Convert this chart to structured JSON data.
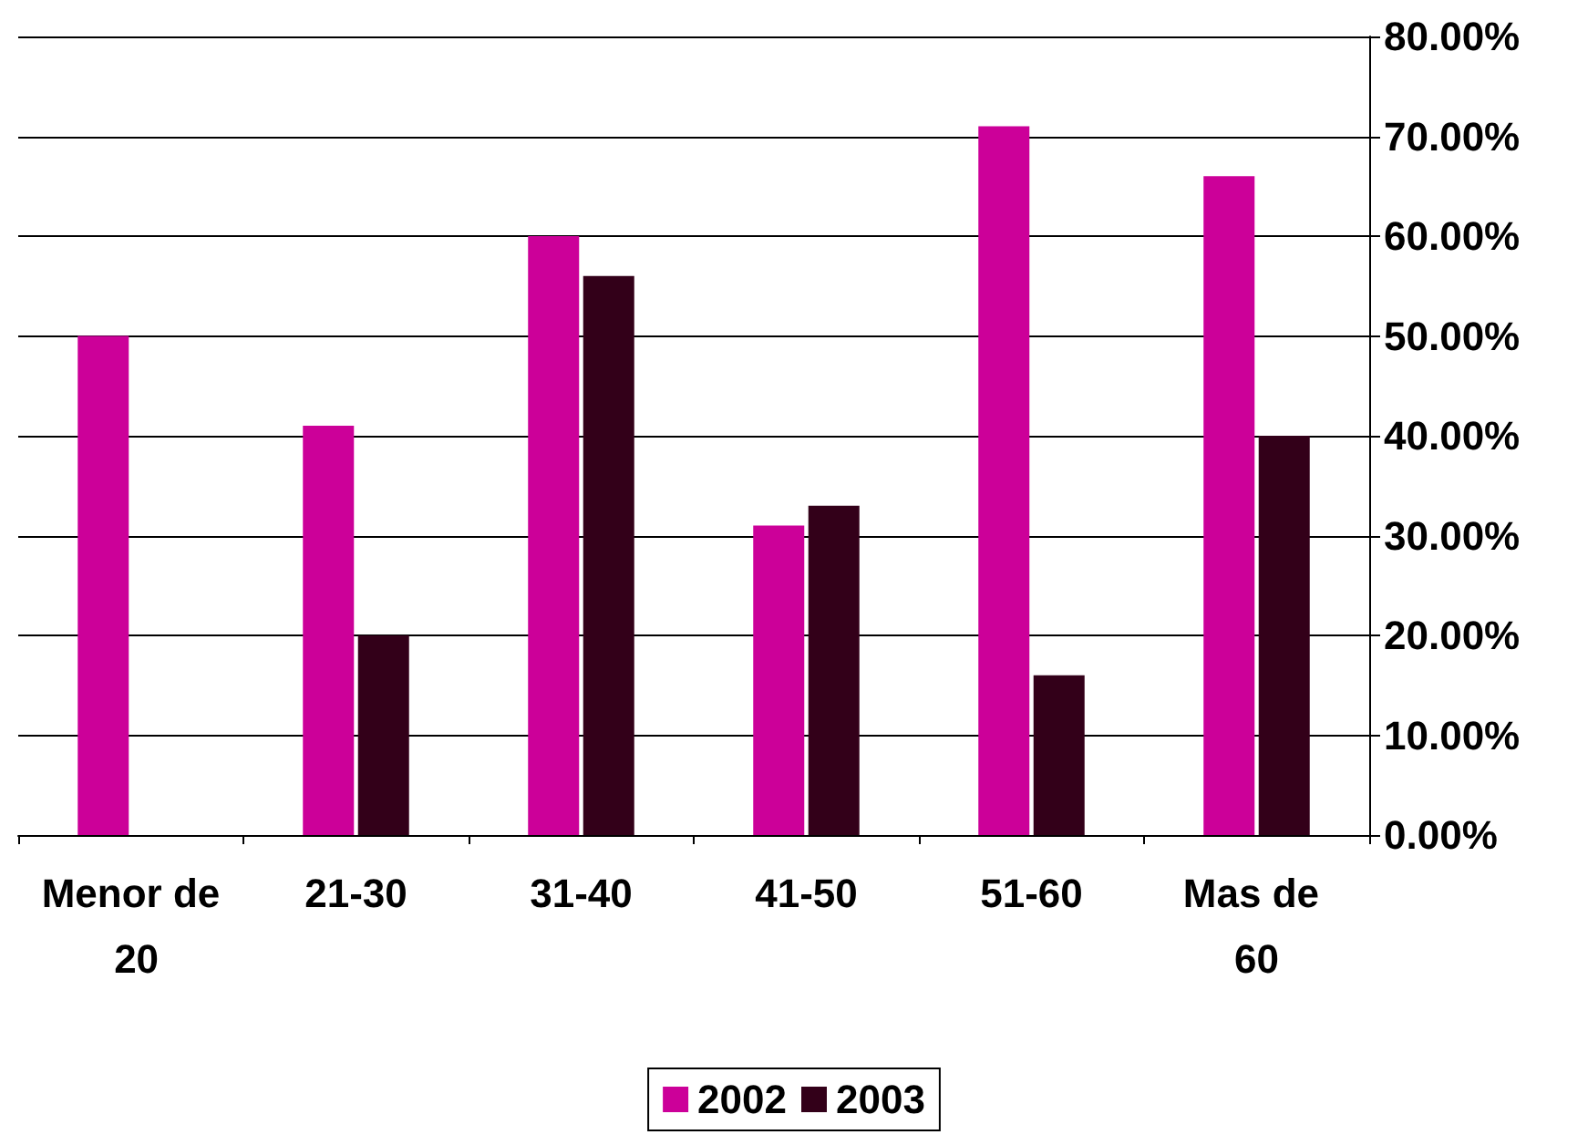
{
  "chart_data": {
    "type": "bar",
    "categories": [
      "Menor de 20",
      "21-30",
      "31-40",
      "41-50",
      "51-60",
      "Mas de 60"
    ],
    "series": [
      {
        "name": "2002",
        "color": "#cc0099",
        "values": [
          50,
          41,
          60,
          31,
          71,
          66
        ]
      },
      {
        "name": "2003",
        "color": "#330019",
        "values": [
          0,
          20,
          56,
          33,
          16,
          40
        ]
      }
    ],
    "ylim": [
      0,
      80
    ],
    "yticks": [
      {
        "value": 0,
        "label": "0.00%"
      },
      {
        "value": 10,
        "label": "10.00%"
      },
      {
        "value": 20,
        "label": "20.00%"
      },
      {
        "value": 30,
        "label": "30.00%"
      },
      {
        "value": 40,
        "label": "40.00%"
      },
      {
        "value": 50,
        "label": "50.00%"
      },
      {
        "value": 60,
        "label": "60.00%"
      },
      {
        "value": 70,
        "label": "70.00%"
      },
      {
        "value": 80,
        "label": "80.00%"
      }
    ],
    "grid": "y",
    "legend": "bottom"
  }
}
